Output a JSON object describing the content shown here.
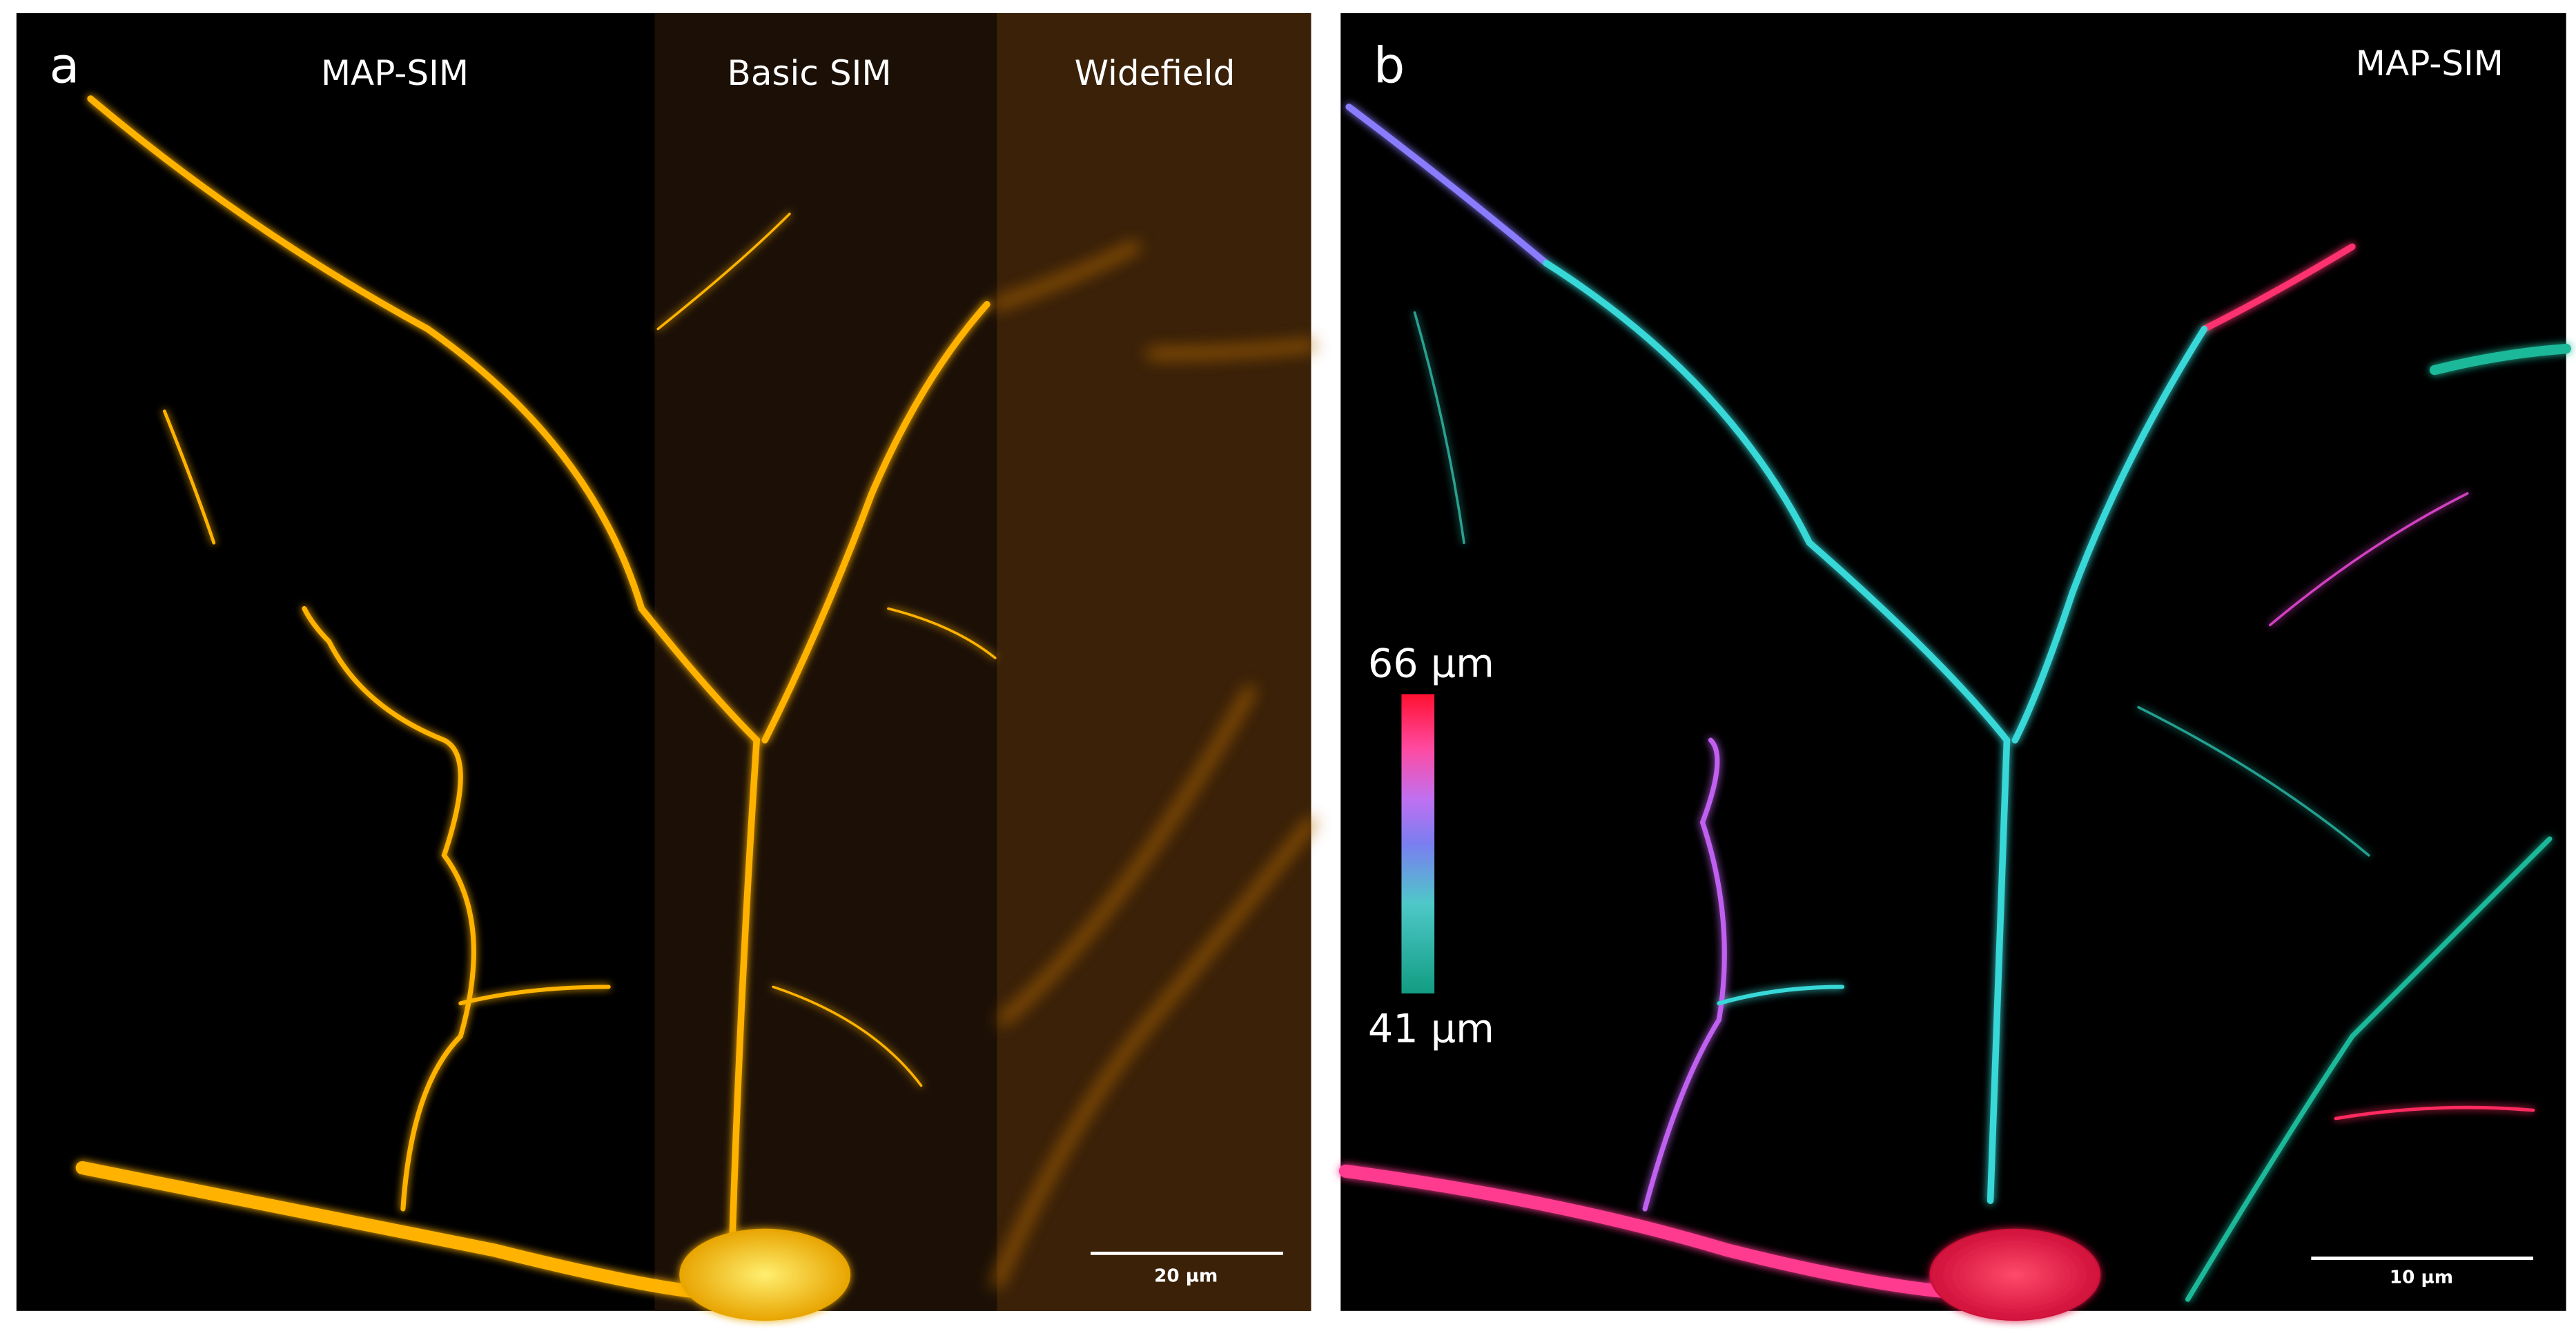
{
  "panels": [
    {
      "letter": "a",
      "labels": [
        "MAP-SIM",
        "Basic SIM",
        "Widefield"
      ],
      "scale_bar": "20 µm"
    },
    {
      "letter": "b",
      "labels": [
        "MAP-SIM"
      ],
      "scale_bar": "10 µm",
      "colorbar": {
        "top": "66 µm",
        "bottom": "41 µm"
      }
    }
  ]
}
